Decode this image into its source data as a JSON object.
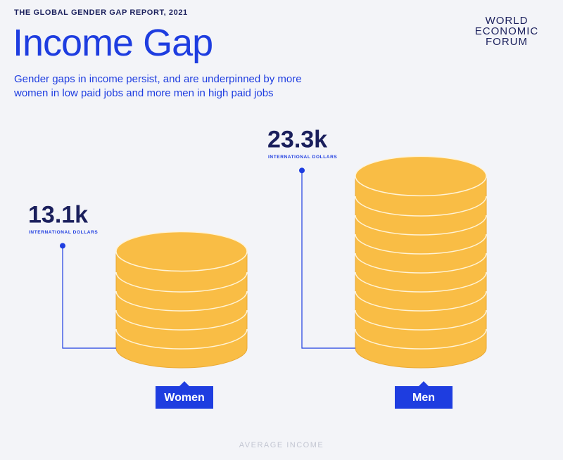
{
  "header": {
    "supertitle": "THE GLOBAL GENDER GAP REPORT, 2021",
    "logo": [
      "WORLD",
      "ECONOMIC",
      "FORUM"
    ]
  },
  "chart_data": {
    "type": "bar",
    "title": "Income Gap",
    "subtitle": "Gender gaps in income persist, and are underpinned by more women in low paid jobs and more men in high paid jobs",
    "categories": [
      "Women",
      "Men"
    ],
    "values": [
      13100,
      23300
    ],
    "value_labels": [
      "13.1k",
      "23.3k"
    ],
    "unit_label": "INTERNATIONAL DOLLARS",
    "x_label": "AVERAGE INCOME",
    "color": "#f9bd45"
  }
}
